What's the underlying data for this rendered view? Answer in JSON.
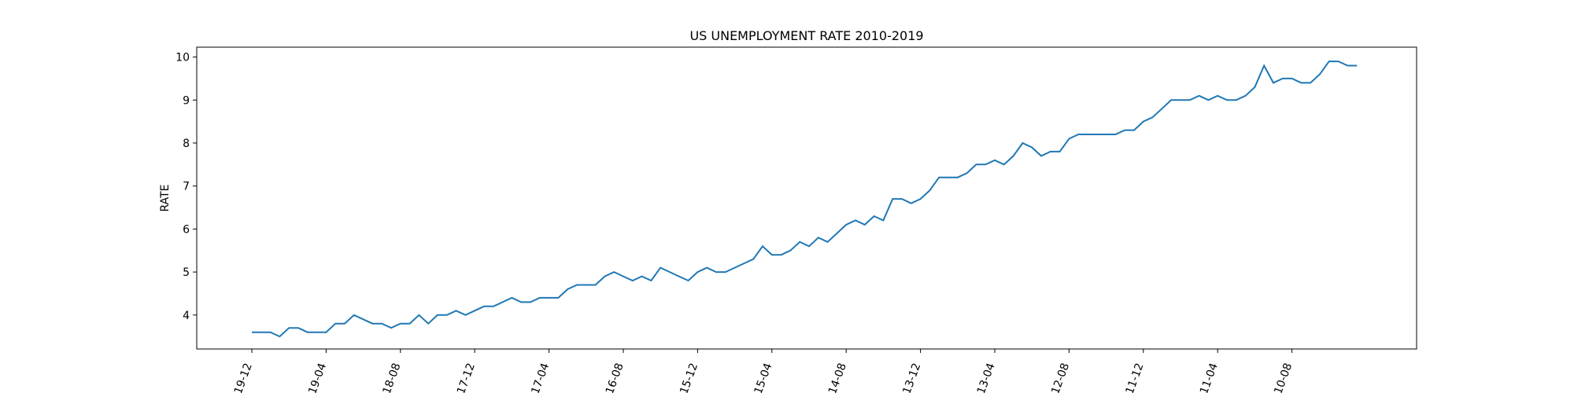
{
  "chart_data": {
    "type": "line",
    "title": "US UNEMPLOYMENT RATE 2010-2019",
    "y_label": "RATE",
    "categories": [
      "2019-12",
      null,
      null,
      null,
      null,
      null,
      null,
      null,
      "2019-04",
      null,
      null,
      null,
      null,
      null,
      null,
      null,
      "2018-08",
      null,
      null,
      null,
      null,
      null,
      null,
      null,
      "2017-12",
      null,
      null,
      null,
      null,
      null,
      null,
      null,
      "2017-04",
      null,
      null,
      null,
      null,
      null,
      null,
      null,
      "2016-08",
      null,
      null,
      null,
      null,
      null,
      null,
      null,
      "2015-12",
      null,
      null,
      null,
      null,
      null,
      null,
      null,
      "2015-04",
      null,
      null,
      null,
      null,
      null,
      null,
      null,
      "2014-08",
      null,
      null,
      null,
      null,
      null,
      null,
      null,
      "2013-12",
      null,
      null,
      null,
      null,
      null,
      null,
      null,
      "2013-04",
      null,
      null,
      null,
      null,
      null,
      null,
      null,
      "2012-08",
      null,
      null,
      null,
      null,
      null,
      null,
      null,
      "2011-12",
      null,
      null,
      null,
      null,
      null,
      null,
      null,
      "2011-04",
      null,
      null,
      null,
      null,
      null,
      null,
      null,
      "2010-08",
      null,
      null,
      null,
      null,
      null,
      null,
      null
    ],
    "series": [
      {
        "name": "RATE",
        "color": "#1f77b4",
        "values": [
          3.6,
          3.6,
          3.6,
          3.5,
          3.7,
          3.7,
          3.6,
          3.6,
          3.6,
          3.8,
          3.8,
          4.0,
          3.9,
          3.8,
          3.8,
          3.7,
          3.8,
          3.8,
          4.0,
          3.8,
          4.0,
          4.0,
          4.1,
          4.0,
          4.1,
          4.2,
          4.2,
          4.3,
          4.4,
          4.3,
          4.3,
          4.4,
          4.4,
          4.4,
          4.6,
          4.7,
          4.7,
          4.7,
          4.9,
          5.0,
          4.9,
          4.8,
          4.9,
          4.8,
          5.1,
          5.0,
          4.9,
          4.8,
          5.0,
          5.1,
          5.0,
          5.0,
          5.1,
          5.2,
          5.3,
          5.6,
          5.4,
          5.4,
          5.5,
          5.7,
          5.6,
          5.8,
          5.7,
          5.9,
          6.1,
          6.2,
          6.1,
          6.3,
          6.2,
          6.7,
          6.7,
          6.6,
          6.7,
          6.9,
          7.2,
          7.2,
          7.2,
          7.3,
          7.5,
          7.5,
          7.6,
          7.5,
          7.7,
          8.0,
          7.9,
          7.7,
          7.8,
          7.8,
          8.1,
          8.2,
          8.2,
          8.2,
          8.2,
          8.2,
          8.3,
          8.3,
          8.5,
          8.6,
          8.8,
          9.0,
          9.0,
          9.0,
          9.1,
          9.0,
          9.1,
          9.0,
          9.0,
          9.1,
          9.3,
          9.8,
          9.4,
          9.5,
          9.5,
          9.4,
          9.4,
          9.6,
          9.9,
          9.9,
          9.8,
          9.8
        ]
      }
    ],
    "ylim": [
      3.21,
      10.23
    ],
    "yticks": [
      4,
      5,
      6,
      7,
      8,
      9,
      10
    ],
    "title_color": "#ff0000",
    "y_label_color": "#ff0000",
    "x_tick_color": "#008000"
  }
}
